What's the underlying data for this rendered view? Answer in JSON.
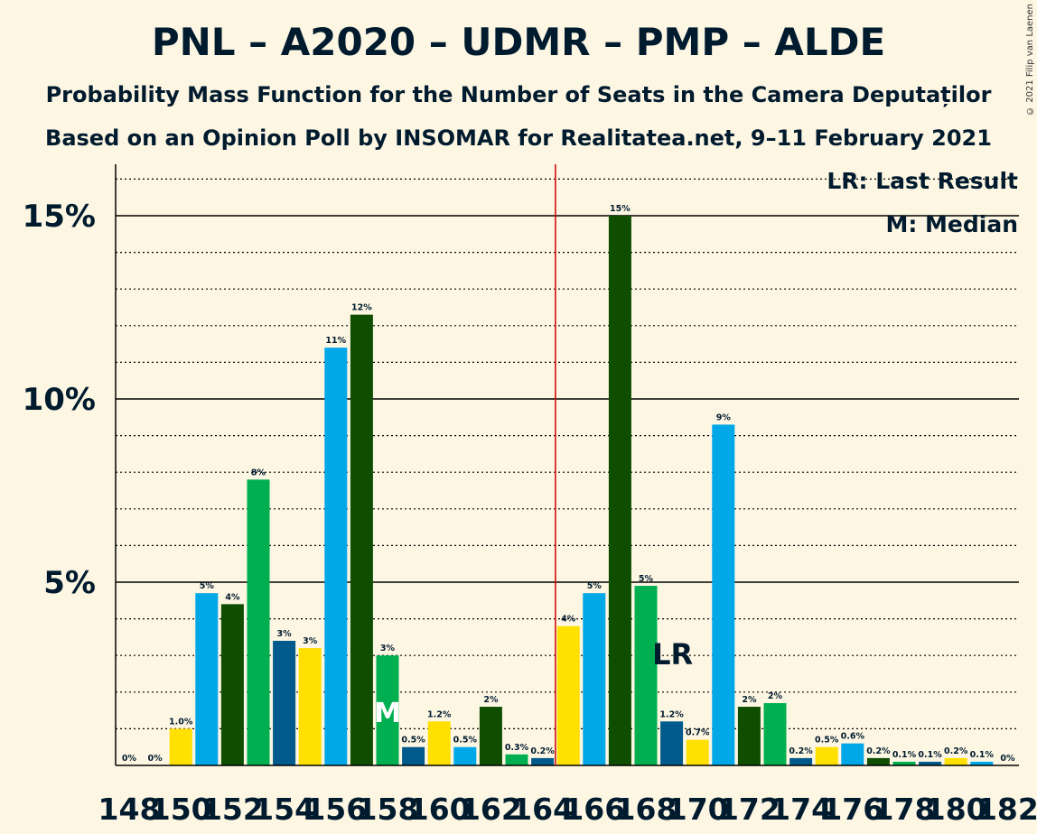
{
  "title": "PNL – A2020 – UDMR – PMP – ALDE",
  "subtitle": "Probability Mass Function for the Number of Seats in the Camera Deputaților",
  "subtitle2": "Based on an Opinion Poll by INSOMAR for Realitatea.net, 9–11 February 2021",
  "copyright": "© 2021 Filip van Laenen",
  "legend": {
    "lr": "LR: Last Result",
    "m": "M: Median"
  },
  "markers": {
    "lr_label": "LR",
    "median_label": "M"
  },
  "colors": {
    "yellow": "#ffe000",
    "blue": "#00a8e8",
    "darkgreen": "#0f4d00",
    "green": "#00b050",
    "navy": "#005a8c",
    "majority_line": "#cc0000",
    "background": "#fdf6e3",
    "text": "#001a2e"
  },
  "chart_data": {
    "type": "bar",
    "x": [
      148,
      149,
      150,
      151,
      152,
      153,
      154,
      155,
      156,
      157,
      158,
      159,
      160,
      161,
      162,
      163,
      164,
      165,
      166,
      167,
      168,
      169,
      170,
      171,
      172,
      173,
      174,
      175,
      176,
      177,
      178,
      179,
      180,
      181,
      182
    ],
    "values": [
      0,
      0,
      1.0,
      4.7,
      4.4,
      7.8,
      3.4,
      3.2,
      11.4,
      12.3,
      3.0,
      0.5,
      1.2,
      0.5,
      1.6,
      0.3,
      0.2,
      3.8,
      4.7,
      15.0,
      4.9,
      1.2,
      0.7,
      9.3,
      1.6,
      1.7,
      0.2,
      0.5,
      0.6,
      0.2,
      0.1,
      0.1,
      0.2,
      0.1,
      0
    ],
    "labels": [
      "0%",
      "0%",
      "1.0%",
      "5%",
      "4%",
      "8%",
      "3%",
      "3%",
      "11%",
      "12%",
      "3%",
      "0.5%",
      "1.2%",
      "0.5%",
      "2%",
      "0.3%",
      "0.2%",
      "4%",
      "5%",
      "15%",
      "5%",
      "1.2%",
      "0.7%",
      "9%",
      "2%",
      "2%",
      "0.2%",
      "0.5%",
      "0.6%",
      "0.2%",
      "0.1%",
      "0.1%",
      "0.2%",
      "0.1%",
      "0%"
    ],
    "bar_colors": [
      "yellow",
      "blue",
      "yellow",
      "blue",
      "darkgreen",
      "green",
      "navy",
      "yellow",
      "blue",
      "darkgreen",
      "green",
      "navy",
      "yellow",
      "blue",
      "darkgreen",
      "green",
      "navy",
      "yellow",
      "blue",
      "darkgreen",
      "green",
      "navy",
      "yellow",
      "blue",
      "darkgreen",
      "green",
      "navy",
      "yellow",
      "blue",
      "darkgreen",
      "green",
      "navy",
      "yellow",
      "blue",
      "darkgreen"
    ],
    "x_tick_labels": [
      "148",
      "150",
      "152",
      "154",
      "156",
      "158",
      "160",
      "162",
      "164",
      "166",
      "168",
      "170",
      "172",
      "174",
      "176",
      "178",
      "180",
      "182"
    ],
    "y_tick_labels": [
      "5%",
      "10%",
      "15%"
    ],
    "y_ticks": [
      5,
      10,
      15
    ],
    "ylim": [
      0,
      16.5
    ],
    "majority_threshold": 165,
    "last_result": 169,
    "median": 158,
    "grid": "dotted every 1%, solid every 5%",
    "legend_position": "top-right"
  }
}
